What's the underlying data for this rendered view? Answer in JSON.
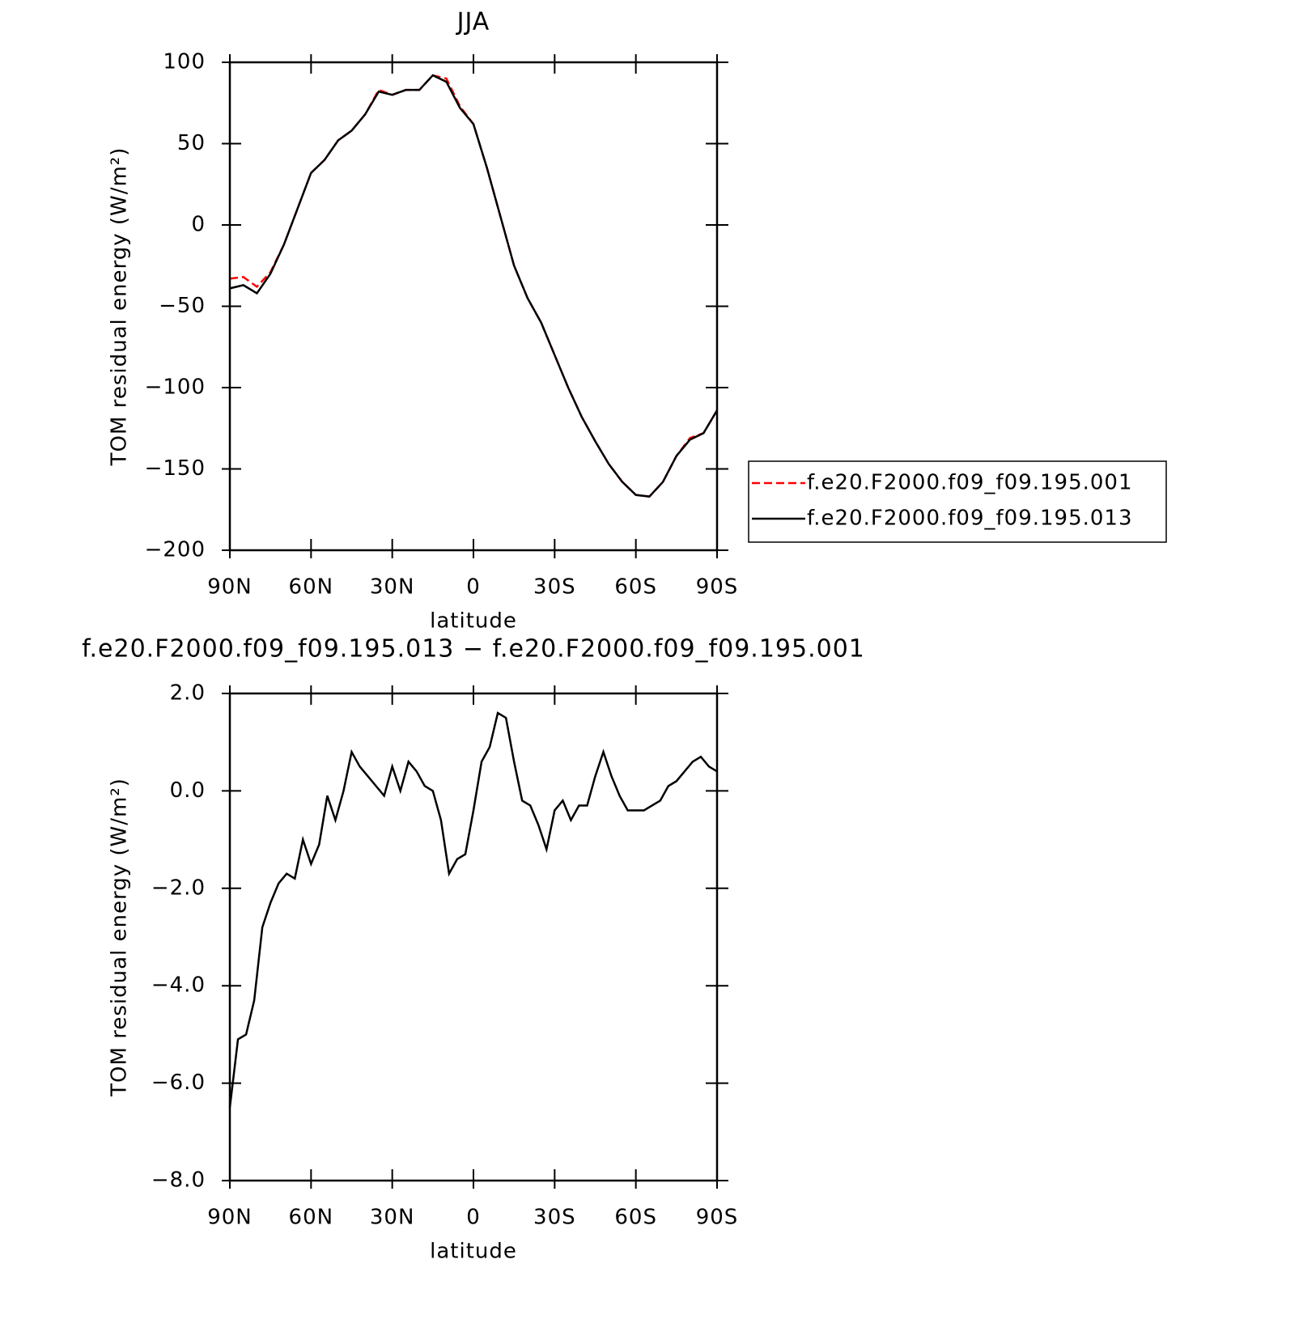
{
  "chart_data": [
    {
      "type": "line",
      "title": "JJA",
      "xlabel": "latitude",
      "ylabel": "TOM residual energy (W/m²)",
      "x": [
        90,
        85,
        80,
        75,
        70,
        65,
        60,
        55,
        50,
        45,
        40,
        35,
        30,
        25,
        20,
        15,
        10,
        5,
        0,
        -5,
        -10,
        -15,
        -20,
        -25,
        -30,
        -35,
        -40,
        -45,
        -50,
        -55,
        -60,
        -65,
        -70,
        -75,
        -80,
        -85,
        -90
      ],
      "series": [
        {
          "name": "f.e20.F2000.f09_f09.195.001",
          "color": "#ff0000",
          "dash": "dashed",
          "values": [
            -33,
            -32,
            -38,
            -29,
            -12,
            10,
            32,
            40,
            52,
            58,
            68,
            83,
            80,
            83,
            83,
            92,
            90,
            73,
            62,
            35,
            5,
            -25,
            -45,
            -60,
            -80,
            -100,
            -118,
            -133,
            -147,
            -158,
            -166,
            -167,
            -158,
            -142,
            -131,
            -128,
            -114
          ]
        },
        {
          "name": "f.e20.F2000.f09_f09.195.013",
          "color": "#000000",
          "dash": "solid",
          "values": [
            -39,
            -37,
            -42,
            -30,
            -12,
            10,
            32,
            40,
            52,
            58,
            68,
            82,
            80,
            83,
            83,
            92,
            88,
            72,
            62,
            35,
            5,
            -25,
            -45,
            -60,
            -80,
            -100,
            -118,
            -133,
            -147,
            -158,
            -166,
            -167,
            -158,
            -142,
            -132,
            -128,
            -114
          ]
        }
      ],
      "xlim": [
        90,
        -90
      ],
      "xticks": [
        {
          "value": 90,
          "label": "90N"
        },
        {
          "value": 60,
          "label": "60N"
        },
        {
          "value": 30,
          "label": "30N"
        },
        0,
        {
          "value": -30,
          "label": "30S"
        },
        {
          "value": -60,
          "label": "60S"
        },
        {
          "value": -90,
          "label": "90S"
        }
      ],
      "ylim": [
        -200,
        100
      ],
      "yticks": [
        {
          "value": -200,
          "label": "−200"
        },
        {
          "value": -150,
          "label": "−150"
        },
        {
          "value": -100,
          "label": "−100"
        },
        {
          "value": -50,
          "label": "−50"
        },
        0,
        50,
        100
      ],
      "legend": "right"
    },
    {
      "type": "line",
      "title": "f.e20.F2000.f09_f09.195.013 − f.e20.F2000.f09_f09.195.001",
      "xlabel": "latitude",
      "ylabel": "TOM residual energy (W/m²)",
      "x": [
        90,
        87,
        84,
        81,
        78,
        75,
        72,
        69,
        66,
        63,
        60,
        57,
        54,
        51,
        48,
        45,
        42,
        39,
        36,
        33,
        30,
        27,
        24,
        21,
        18,
        15,
        12,
        9,
        6,
        3,
        0,
        -3,
        -6,
        -9,
        -12,
        -15,
        -18,
        -21,
        -24,
        -27,
        -30,
        -33,
        -36,
        -39,
        -42,
        -45,
        -48,
        -51,
        -54,
        -57,
        -60,
        -63,
        -66,
        -69,
        -72,
        -75,
        -78,
        -81,
        -84,
        -87,
        -90
      ],
      "values": [
        -6.5,
        -5.1,
        -5.0,
        -4.3,
        -2.8,
        -2.3,
        -1.9,
        -1.7,
        -1.8,
        -1.0,
        -1.5,
        -1.1,
        -0.1,
        -0.6,
        0.0,
        0.8,
        0.5,
        0.3,
        0.1,
        -0.1,
        0.5,
        0.0,
        0.6,
        0.4,
        0.1,
        0.0,
        -0.6,
        -1.7,
        -1.4,
        -1.3,
        -0.4,
        0.6,
        0.9,
        1.6,
        1.5,
        0.6,
        -0.2,
        -0.3,
        -0.7,
        -1.2,
        -0.4,
        -0.2,
        -0.6,
        -0.3,
        -0.3,
        0.3,
        0.8,
        0.3,
        -0.1,
        -0.4,
        -0.4,
        -0.4,
        -0.3,
        -0.2,
        0.1,
        0.2,
        0.4,
        0.6,
        0.7,
        0.5,
        0.4
      ],
      "color": "#000000",
      "xlim": [
        90,
        -90
      ],
      "xticks": [
        {
          "value": 90,
          "label": "90N"
        },
        {
          "value": 60,
          "label": "60N"
        },
        {
          "value": 30,
          "label": "30N"
        },
        0,
        {
          "value": -30,
          "label": "30S"
        },
        {
          "value": -60,
          "label": "60S"
        },
        {
          "value": -90,
          "label": "90S"
        }
      ],
      "ylim": [
        -8,
        2
      ],
      "yticks": [
        {
          "value": -8,
          "label": "−8.0"
        },
        {
          "value": -6,
          "label": "−6.0"
        },
        {
          "value": -4,
          "label": "−4.0"
        },
        {
          "value": -2,
          "label": "−2.0"
        },
        {
          "value": 0,
          "label": "0.0"
        },
        {
          "value": 2,
          "label": "2.0"
        }
      ]
    }
  ]
}
